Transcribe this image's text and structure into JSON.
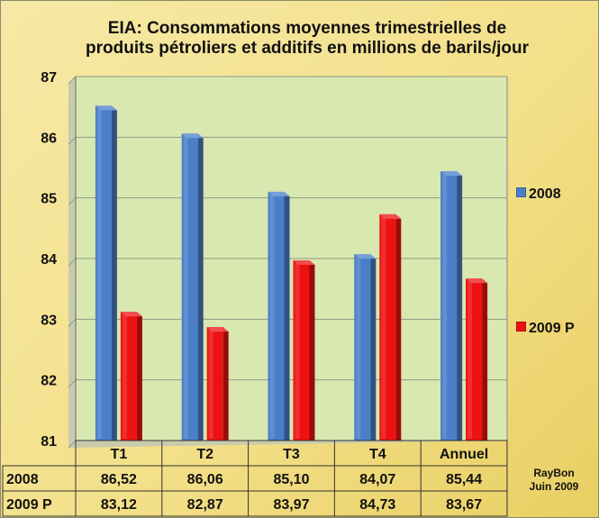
{
  "chart_data": {
    "type": "bar",
    "title_lines": [
      "EIA: Consommations moyennes trimestrielles de",
      "produits pétroliers et additifs en millions de barils/jour"
    ],
    "categories": [
      "T1",
      "T2",
      "T3",
      "T4",
      "Annuel"
    ],
    "series": [
      {
        "name": "2008",
        "values": [
          86.52,
          86.06,
          85.1,
          84.07,
          85.44
        ],
        "labels": [
          "86,52",
          "86,06",
          "85,10",
          "84,07",
          "85,44"
        ],
        "color": "#4a7ec8"
      },
      {
        "name": "2009 P",
        "values": [
          83.12,
          82.87,
          83.97,
          84.73,
          83.67
        ],
        "labels": [
          "83,12",
          "82,87",
          "83,97",
          "84,73",
          "83,67"
        ],
        "color": "#ee1111"
      }
    ],
    "ylim": [
      81,
      87
    ],
    "yticks": [
      "81",
      "82",
      "83",
      "84",
      "85",
      "86",
      "87"
    ],
    "grid": true,
    "legend_position": "right",
    "data_table": true,
    "plot_background": "#d9e8b0"
  },
  "credit": {
    "line1": "RayBon",
    "line2": "Juin 2009"
  }
}
